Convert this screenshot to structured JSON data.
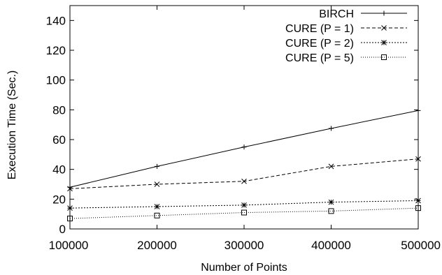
{
  "chart_data": {
    "type": "line",
    "title": "",
    "xlabel": "Number of Points",
    "ylabel": "Execution Time (Sec.)",
    "x": [
      100000,
      200000,
      300000,
      400000,
      500000
    ],
    "xticks": [
      "100000",
      "200000",
      "300000",
      "400000",
      "500000"
    ],
    "yticks": [
      "0",
      "20",
      "40",
      "60",
      "80",
      "100",
      "120",
      "140"
    ],
    "xlim": [
      100000,
      500000
    ],
    "ylim": [
      0,
      150
    ],
    "grid": false,
    "legend_position": "top-right",
    "series": [
      {
        "name": "BIRCH",
        "values": [
          28,
          42,
          55,
          67.5,
          79.5
        ],
        "marker": "plus",
        "dash": "solid"
      },
      {
        "name": "CURE (P = 1)",
        "values": [
          27,
          30,
          32,
          42,
          47
        ],
        "marker": "cross",
        "dash": "dashed"
      },
      {
        "name": "CURE (P = 2)",
        "values": [
          14,
          15,
          16,
          18,
          19
        ],
        "marker": "asterisk",
        "dash": "dotted"
      },
      {
        "name": "CURE (P = 5)",
        "values": [
          7,
          9,
          11,
          12,
          14
        ],
        "marker": "square",
        "dash": "fine-dotted"
      }
    ]
  }
}
